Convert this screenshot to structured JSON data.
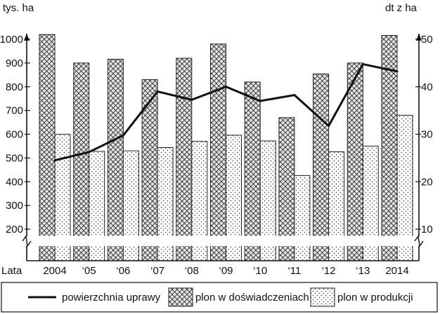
{
  "chart_data": {
    "type": "bar",
    "title": "",
    "x_axis_label": "Lata",
    "categories": [
      "2004",
      "‘05",
      "‘06",
      "‘07",
      "‘08",
      "‘09",
      "‘10",
      "‘11",
      "‘12",
      "‘13",
      "2014"
    ],
    "left_axis": {
      "label": "tys. ha",
      "ticks": [
        200,
        300,
        400,
        500,
        600,
        700,
        800,
        900,
        1000
      ]
    },
    "right_axis": {
      "label": "dt z ha",
      "ticks": [
        10,
        20,
        30,
        40,
        50
      ],
      "ylim": [
        10,
        50
      ]
    },
    "series": [
      {
        "name": "plon w doświadczeniach",
        "kind": "bar",
        "pattern": "crosshatch",
        "axis": "right",
        "values": [
          51,
          45,
          45.8,
          41.5,
          46,
          49,
          41,
          33.5,
          42.7,
          45,
          50.8
        ]
      },
      {
        "name": "plon w produkcji",
        "kind": "bar",
        "pattern": "dots",
        "axis": "right",
        "values": [
          30,
          26.4,
          26.5,
          27.2,
          28.5,
          29.8,
          28.6,
          21.3,
          26.3,
          27.5,
          34
        ]
      },
      {
        "name": "powierzchnia uprawy",
        "kind": "line",
        "axis": "left",
        "values": [
          490,
          525,
          595,
          780,
          745,
          800,
          740,
          765,
          635,
          895,
          865
        ]
      }
    ],
    "legend_position": "bottom",
    "axis_break": true,
    "grid": false
  }
}
